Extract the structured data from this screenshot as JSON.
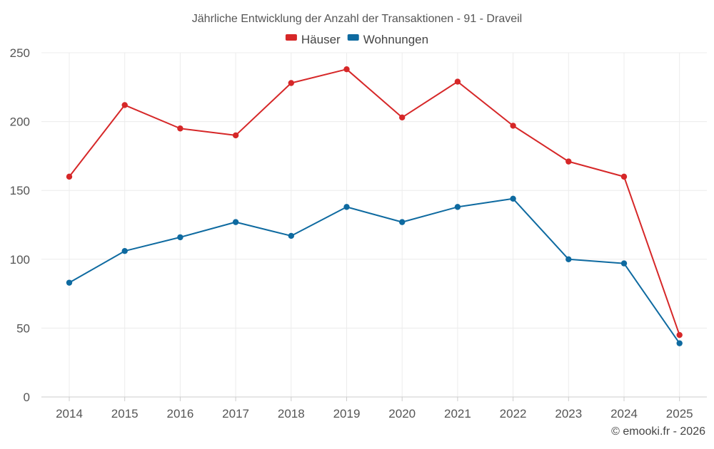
{
  "chart_data": {
    "type": "line",
    "title": "Jährliche Entwicklung der Anzahl der Transaktionen - 91 - Draveil",
    "xlabel": "",
    "ylabel": "",
    "categories": [
      "2014",
      "2015",
      "2016",
      "2017",
      "2018",
      "2019",
      "2020",
      "2021",
      "2022",
      "2023",
      "2024",
      "2025"
    ],
    "ylim": [
      0,
      250
    ],
    "yticks": [
      0,
      50,
      100,
      150,
      200,
      250
    ],
    "grid": true,
    "legend_position": "top-center",
    "series": [
      {
        "name": "Häuser",
        "color": "#d62728",
        "values": [
          160,
          212,
          195,
          190,
          228,
          238,
          203,
          229,
          197,
          171,
          160,
          45
        ]
      },
      {
        "name": "Wohnungen",
        "color": "#0e6aa0",
        "values": [
          83,
          106,
          116,
          127,
          117,
          138,
          127,
          138,
          144,
          100,
          97,
          39
        ]
      }
    ]
  },
  "credit": "© emooki.fr - 2026"
}
